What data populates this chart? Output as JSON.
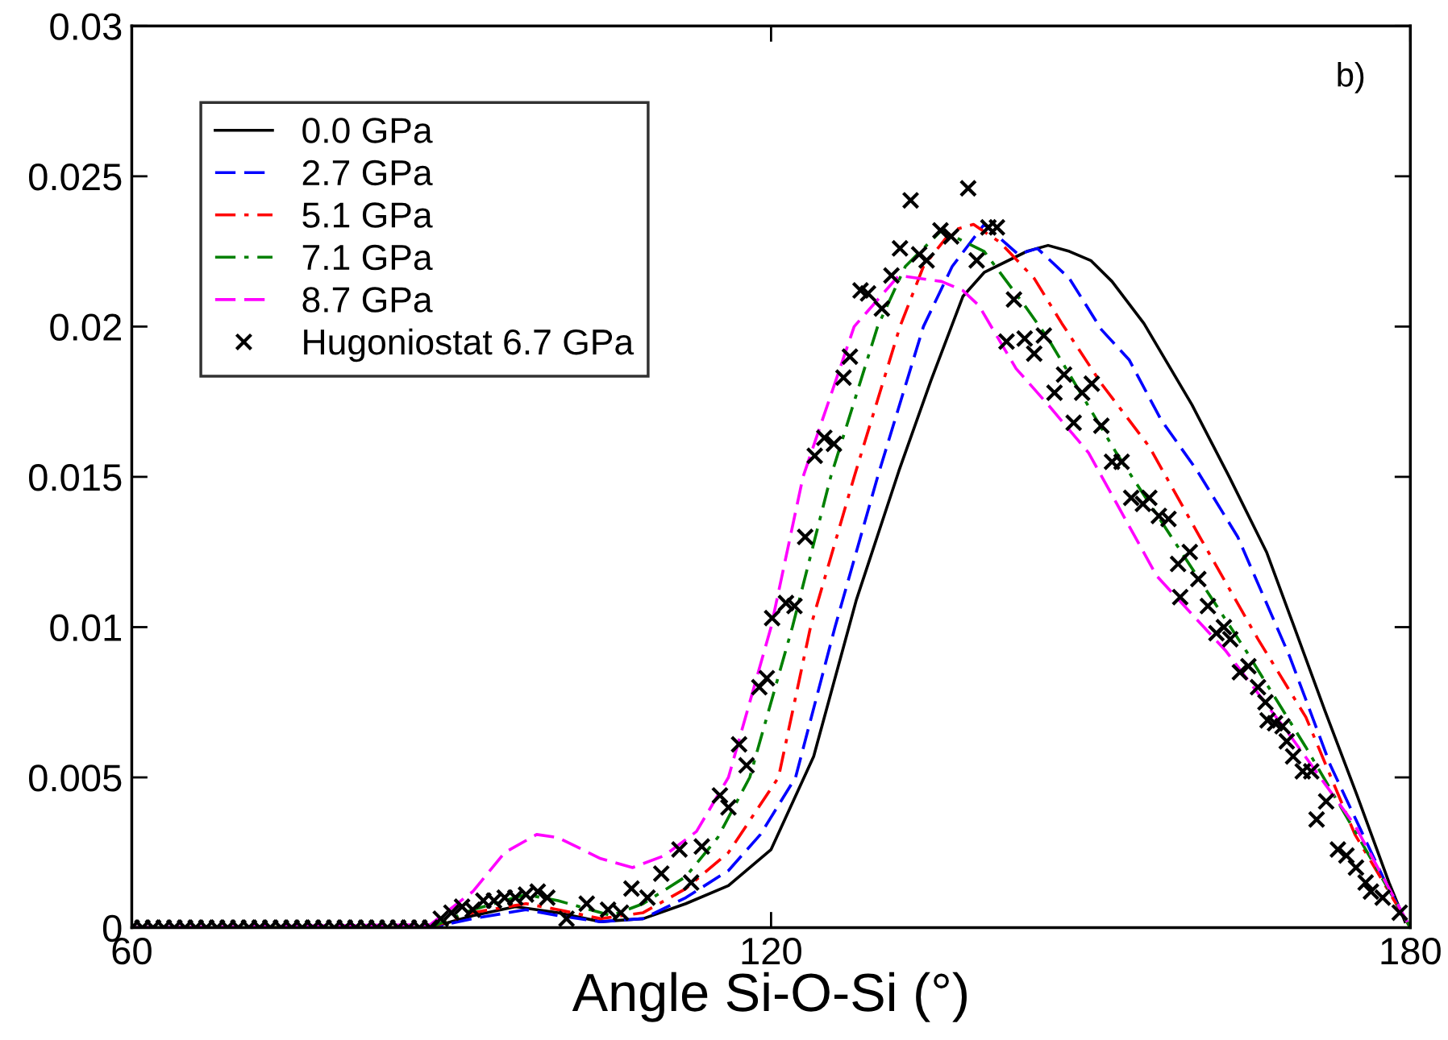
{
  "chart_data": {
    "type": "line",
    "xlabel": "Angle Si-O-Si (°)",
    "annotations": [
      "b)"
    ],
    "xlim": [
      60,
      180
    ],
    "ylim": [
      0,
      0.03
    ],
    "xticks": [
      60,
      120,
      180
    ],
    "yticks": [
      0,
      0.005,
      0.01,
      0.015,
      0.02,
      0.025,
      0.03
    ],
    "grid": false,
    "legend": "top left",
    "series": [
      {
        "name": "0.0 GPa",
        "color": "#000000",
        "line_style": "solid",
        "x": [
          60,
          88,
          92,
          96,
          100,
          104,
          108,
          112,
          116,
          120,
          124,
          128,
          132,
          135,
          138,
          140,
          144,
          146,
          148,
          150,
          152,
          155,
          159.5,
          163,
          166.5,
          169,
          172,
          175,
          178,
          179.5
        ],
        "values": [
          0,
          0,
          0.0004,
          0.0007,
          0.0005,
          0.0002,
          0.0003,
          0.0008,
          0.0014,
          0.0026,
          0.0057,
          0.0109,
          0.0152,
          0.0182,
          0.021,
          0.0218,
          0.0225,
          0.0227,
          0.0225,
          0.0222,
          0.0215,
          0.0201,
          0.0174,
          0.015,
          0.0125,
          0.0101,
          0.0072,
          0.0044,
          0.0015,
          0.0002
        ]
      },
      {
        "name": "2.7 GPa",
        "color": "#0000ff",
        "line_style": "dashed",
        "x": [
          60,
          88,
          92,
          97,
          100,
          104,
          108,
          112,
          116,
          119,
          122.3,
          126,
          130,
          134.3,
          137,
          140,
          143.2,
          145,
          148,
          151,
          153.6,
          156.6,
          160,
          163.8,
          168.7,
          172.5,
          177.8,
          180
        ],
        "values": [
          0,
          0,
          0.0003,
          0.0006,
          0.0004,
          0.0002,
          0.0003,
          0.001,
          0.0019,
          0.0031,
          0.005,
          0.01,
          0.015,
          0.02,
          0.022,
          0.0234,
          0.0224,
          0.0226,
          0.0216,
          0.0199,
          0.0189,
          0.0169,
          0.0152,
          0.013,
          0.009,
          0.0054,
          0.0014,
          0
        ]
      },
      {
        "name": "5.1 GPa",
        "color": "#ff0000",
        "line_style": "dashdot",
        "x": [
          60,
          88,
          92,
          97,
          100,
          104,
          108,
          112,
          116,
          120.7,
          123.7,
          127.8,
          132.1,
          134.3,
          137,
          139,
          141.5,
          144.7,
          147.3,
          151,
          155.5,
          160.4,
          165.7,
          170.2,
          174.8,
          180
        ],
        "values": [
          0,
          0,
          0.0005,
          0.0008,
          0.0006,
          0.0003,
          0.0005,
          0.0013,
          0.0025,
          0.005,
          0.01,
          0.015,
          0.02,
          0.022,
          0.0232,
          0.0234,
          0.0228,
          0.0216,
          0.0201,
          0.0181,
          0.016,
          0.0129,
          0.0096,
          0.007,
          0.0031,
          0
        ]
      },
      {
        "name": "7.1 GPa",
        "color": "#008000",
        "line_style": "dashdot",
        "x": [
          60,
          88,
          92,
          97,
          100,
          105,
          108,
          112,
          115,
          118,
          122,
          125.6,
          130,
          132.6,
          136,
          140,
          143.8,
          146,
          152.4,
          158.5,
          164.6,
          170.2,
          176.3,
          180
        ],
        "values": [
          0,
          0,
          0.0006,
          0.0011,
          0.0009,
          0.0004,
          0.0008,
          0.0017,
          0.003,
          0.005,
          0.01,
          0.015,
          0.02,
          0.022,
          0.0232,
          0.0225,
          0.0207,
          0.0196,
          0.0158,
          0.0125,
          0.0092,
          0.006,
          0.0023,
          0
        ]
      },
      {
        "name": "8.7 GPa",
        "color": "#ff00ff",
        "line_style": "dashed",
        "x": [
          60,
          88,
          92,
          95,
          98,
          100,
          104,
          107,
          110,
          113,
          116,
          120,
          123,
          127.8,
          132,
          136,
          138,
          139.5,
          143,
          146,
          149.8,
          156.2,
          162.7,
          168.7,
          174.8,
          180
        ],
        "values": [
          0,
          0.0001,
          0.0012,
          0.0025,
          0.0031,
          0.003,
          0.0023,
          0.002,
          0.0024,
          0.0032,
          0.005,
          0.01,
          0.015,
          0.02,
          0.0217,
          0.0215,
          0.0212,
          0.0207,
          0.0186,
          0.0174,
          0.0158,
          0.0117,
          0.0092,
          0.0064,
          0.0034,
          0
        ]
      },
      {
        "name": "Hugoniostat 6.7 GPa",
        "type": "scatter",
        "marker": "cross",
        "color": "#000000",
        "x": [
          60,
          61,
          62,
          63,
          64,
          65,
          66,
          67,
          68,
          69,
          70,
          71,
          72,
          73,
          74,
          75,
          76,
          77,
          78,
          79,
          80,
          81,
          82,
          83,
          84,
          85,
          86,
          87,
          88,
          89,
          90,
          91,
          92,
          93,
          94,
          95,
          96,
          97,
          98.1,
          99,
          100.8,
          102.7,
          104.7,
          105.9,
          106.9,
          108.4,
          109.7,
          111.4,
          112.5,
          113.5,
          115.2,
          116,
          117,
          117.7,
          118.9,
          119.6,
          120.1,
          121.4,
          122.2,
          123.2,
          124.1,
          125,
          125.9,
          126.8,
          127.4,
          128.4,
          129.1,
          130.4,
          131.3,
          132.1,
          133.1,
          133.9,
          134.6,
          135.9,
          136.9,
          138.5,
          139.3,
          140.4,
          141.2,
          142.1,
          142.8,
          143.8,
          144.7,
          145.6,
          146.6,
          147.5,
          148.4,
          149.2,
          150.1,
          151,
          152,
          152.9,
          153.8,
          154.9,
          155.5,
          156.4,
          157.3,
          158.2,
          158.4,
          159.3,
          160.1,
          161,
          161.8,
          162.5,
          163.1,
          164,
          164.8,
          165.7,
          166.4,
          166.6,
          167.3,
          168,
          168.4,
          169,
          169.9,
          170.7,
          171.2,
          172.1,
          173.2,
          174,
          174.9,
          175.8,
          176.3,
          177.4,
          179
        ],
        "values": [
          0,
          0,
          0,
          0,
          0,
          0,
          0,
          0,
          0,
          0,
          0,
          0,
          0,
          0,
          0,
          0,
          0,
          0,
          0,
          0,
          0,
          0,
          0,
          0,
          0,
          0,
          0,
          0,
          0,
          0.0003,
          0.0005,
          0.0007,
          0.0006,
          0.0009,
          0.0009,
          0.001,
          0.001,
          0.0011,
          0.0012,
          0.001,
          0.0003,
          0.0008,
          0.0006,
          0.0005,
          0.0013,
          0.001,
          0.0018,
          0.0026,
          0.0015,
          0.0027,
          0.0044,
          0.004,
          0.0061,
          0.0054,
          0.008,
          0.0083,
          0.0103,
          0.0108,
          0.0107,
          0.013,
          0.0157,
          0.0163,
          0.0161,
          0.0183,
          0.019,
          0.0212,
          0.0211,
          0.0206,
          0.0217,
          0.0226,
          0.0242,
          0.0224,
          0.0222,
          0.0232,
          0.023,
          0.0246,
          0.0222,
          0.0233,
          0.0233,
          0.0195,
          0.0209,
          0.0196,
          0.0191,
          0.0197,
          0.0178,
          0.0184,
          0.0168,
          0.0178,
          0.0181,
          0.0167,
          0.0155,
          0.0155,
          0.0143,
          0.0141,
          0.0143,
          0.0137,
          0.0136,
          0.0121,
          0.011,
          0.0125,
          0.0116,
          0.0107,
          0.0098,
          0.01,
          0.0096,
          0.0085,
          0.0087,
          0.008,
          0.0075,
          0.0069,
          0.0068,
          0.0067,
          0.0062,
          0.0057,
          0.0052,
          0.0052,
          0.0036,
          0.0042,
          0.0026,
          0.0024,
          0.002,
          0.0015,
          0.0012,
          0.001,
          0.0005
        ]
      }
    ]
  }
}
